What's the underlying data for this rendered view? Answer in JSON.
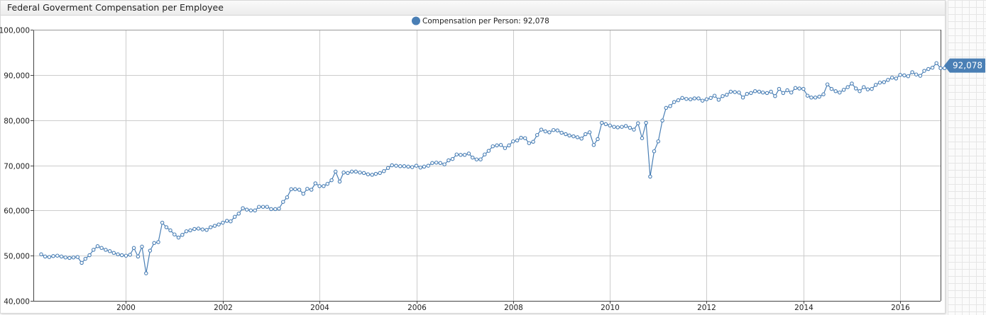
{
  "window": {
    "title": "Federal Goverment Compensation per Employee"
  },
  "colors": {
    "series": "#4a7fb5",
    "grid": "#cccccc",
    "callout": "#4a7fb5"
  },
  "chart_data": {
    "type": "line",
    "title": "Federal Goverment Compensation per Employee",
    "xlabel": "",
    "ylabel": "",
    "ylim": [
      40000,
      100000
    ],
    "xlim": [
      "1998-02-01",
      "2016-11-01"
    ],
    "grid": true,
    "legend": {
      "position": "top-center",
      "text": "Compensation per Person: 92,078"
    },
    "last_value_label": "92,078",
    "y_ticks": [
      {
        "value": 40000,
        "label": "40,000"
      },
      {
        "value": 50000,
        "label": "50,000"
      },
      {
        "value": 60000,
        "label": "60,000"
      },
      {
        "value": 70000,
        "label": "70,000"
      },
      {
        "value": 80000,
        "label": "80,000"
      },
      {
        "value": 90000,
        "label": "90,000"
      },
      {
        "value": 100000,
        "label": "100,000"
      }
    ],
    "x_ticks": [
      {
        "date": "2000-01-01",
        "label": "2000"
      },
      {
        "date": "2002-01-01",
        "label": "2002"
      },
      {
        "date": "2004-01-01",
        "label": "2004"
      },
      {
        "date": "2006-01-01",
        "label": "2006"
      },
      {
        "date": "2008-01-01",
        "label": "2008"
      },
      {
        "date": "2010-01-01",
        "label": "2010"
      },
      {
        "date": "2012-01-01",
        "label": "2012"
      },
      {
        "date": "2014-01-01",
        "label": "2014"
      },
      {
        "date": "2016-01-01",
        "label": "2016"
      }
    ],
    "series": [
      {
        "name": "Compensation per Person",
        "points": [
          [
            "1998-04",
            50300
          ],
          [
            "1998-05",
            49800
          ],
          [
            "1998-06",
            49700
          ],
          [
            "1998-07",
            49900
          ],
          [
            "1998-08",
            50000
          ],
          [
            "1998-09",
            49800
          ],
          [
            "1998-10",
            49600
          ],
          [
            "1998-11",
            49500
          ],
          [
            "1998-12",
            49600
          ],
          [
            "1999-01",
            49700
          ],
          [
            "1999-02",
            48400
          ],
          [
            "1999-03",
            49300
          ],
          [
            "1999-04",
            50100
          ],
          [
            "1999-05",
            51300
          ],
          [
            "1999-06",
            52100
          ],
          [
            "1999-07",
            51700
          ],
          [
            "1999-08",
            51300
          ],
          [
            "1999-09",
            51000
          ],
          [
            "1999-10",
            50600
          ],
          [
            "1999-11",
            50300
          ],
          [
            "1999-12",
            50100
          ],
          [
            "2000-01",
            50000
          ],
          [
            "2000-02",
            50200
          ],
          [
            "2000-03",
            51700
          ],
          [
            "2000-04",
            49800
          ],
          [
            "2000-05",
            52000
          ],
          [
            "2000-06",
            46100
          ],
          [
            "2000-07",
            51100
          ],
          [
            "2000-08",
            52800
          ],
          [
            "2000-09",
            53000
          ],
          [
            "2000-10",
            57300
          ],
          [
            "2000-11",
            56300
          ],
          [
            "2000-12",
            55600
          ],
          [
            "2001-01",
            54700
          ],
          [
            "2001-02",
            54000
          ],
          [
            "2001-03",
            54600
          ],
          [
            "2001-04",
            55400
          ],
          [
            "2001-05",
            55600
          ],
          [
            "2001-06",
            55900
          ],
          [
            "2001-07",
            56000
          ],
          [
            "2001-08",
            55800
          ],
          [
            "2001-09",
            55700
          ],
          [
            "2001-10",
            56300
          ],
          [
            "2001-11",
            56600
          ],
          [
            "2001-12",
            56900
          ],
          [
            "2002-01",
            57300
          ],
          [
            "2002-02",
            57700
          ],
          [
            "2002-03",
            57600
          ],
          [
            "2002-04",
            58600
          ],
          [
            "2002-05",
            59300
          ],
          [
            "2002-06",
            60500
          ],
          [
            "2002-07",
            60200
          ],
          [
            "2002-08",
            60000
          ],
          [
            "2002-09",
            60000
          ],
          [
            "2002-10",
            60800
          ],
          [
            "2002-11",
            60800
          ],
          [
            "2002-12",
            60800
          ],
          [
            "2003-01",
            60300
          ],
          [
            "2003-02",
            60300
          ],
          [
            "2003-03",
            60400
          ],
          [
            "2003-04",
            61900
          ],
          [
            "2003-05",
            62900
          ],
          [
            "2003-06",
            64700
          ],
          [
            "2003-07",
            64700
          ],
          [
            "2003-08",
            64600
          ],
          [
            "2003-09",
            63700
          ],
          [
            "2003-10",
            64800
          ],
          [
            "2003-11",
            64600
          ],
          [
            "2003-12",
            66000
          ],
          [
            "2004-01",
            65400
          ],
          [
            "2004-02",
            65400
          ],
          [
            "2004-03",
            65900
          ],
          [
            "2004-04",
            66700
          ],
          [
            "2004-05",
            68600
          ],
          [
            "2004-06",
            66400
          ],
          [
            "2004-07",
            68400
          ],
          [
            "2004-08",
            68300
          ],
          [
            "2004-09",
            68600
          ],
          [
            "2004-10",
            68600
          ],
          [
            "2004-11",
            68400
          ],
          [
            "2004-12",
            68300
          ],
          [
            "2005-01",
            68000
          ],
          [
            "2005-02",
            67900
          ],
          [
            "2005-03",
            68100
          ],
          [
            "2005-04",
            68300
          ],
          [
            "2005-05",
            68700
          ],
          [
            "2005-06",
            69400
          ],
          [
            "2005-07",
            70000
          ],
          [
            "2005-08",
            69900
          ],
          [
            "2005-09",
            69800
          ],
          [
            "2005-10",
            69800
          ],
          [
            "2005-11",
            69700
          ],
          [
            "2005-12",
            69600
          ],
          [
            "2006-01",
            69900
          ],
          [
            "2006-02",
            69500
          ],
          [
            "2006-03",
            69700
          ],
          [
            "2006-04",
            69900
          ],
          [
            "2006-05",
            70500
          ],
          [
            "2006-06",
            70600
          ],
          [
            "2006-07",
            70500
          ],
          [
            "2006-08",
            70200
          ],
          [
            "2006-09",
            71100
          ],
          [
            "2006-10",
            71400
          ],
          [
            "2006-11",
            72400
          ],
          [
            "2006-12",
            72300
          ],
          [
            "2007-01",
            72300
          ],
          [
            "2007-02",
            72600
          ],
          [
            "2007-03",
            71700
          ],
          [
            "2007-04",
            71300
          ],
          [
            "2007-05",
            71300
          ],
          [
            "2007-06",
            72400
          ],
          [
            "2007-07",
            73200
          ],
          [
            "2007-08",
            74200
          ],
          [
            "2007-09",
            74400
          ],
          [
            "2007-10",
            74500
          ],
          [
            "2007-11",
            73800
          ],
          [
            "2007-12",
            74400
          ],
          [
            "2008-01",
            75300
          ],
          [
            "2008-02",
            75500
          ],
          [
            "2008-03",
            76100
          ],
          [
            "2008-04",
            76000
          ],
          [
            "2008-05",
            74900
          ],
          [
            "2008-06",
            75200
          ],
          [
            "2008-07",
            76700
          ],
          [
            "2008-08",
            77900
          ],
          [
            "2008-09",
            77500
          ],
          [
            "2008-10",
            77300
          ],
          [
            "2008-11",
            77800
          ],
          [
            "2008-12",
            77700
          ],
          [
            "2009-01",
            77200
          ],
          [
            "2009-02",
            76900
          ],
          [
            "2009-03",
            76600
          ],
          [
            "2009-04",
            76400
          ],
          [
            "2009-05",
            76200
          ],
          [
            "2009-06",
            75900
          ],
          [
            "2009-07",
            76900
          ],
          [
            "2009-08",
            77300
          ],
          [
            "2009-09",
            74500
          ],
          [
            "2009-10",
            75800
          ],
          [
            "2009-11",
            79400
          ],
          [
            "2009-12",
            79100
          ],
          [
            "2010-01",
            78800
          ],
          [
            "2010-02",
            78500
          ],
          [
            "2010-03",
            78400
          ],
          [
            "2010-04",
            78500
          ],
          [
            "2010-05",
            78700
          ],
          [
            "2010-06",
            78300
          ],
          [
            "2010-07",
            77900
          ],
          [
            "2010-08",
            79300
          ],
          [
            "2010-09",
            76000
          ],
          [
            "2010-10",
            79400
          ],
          [
            "2010-11",
            67500
          ],
          [
            "2010-12",
            73100
          ],
          [
            "2011-01",
            75300
          ],
          [
            "2011-02",
            79900
          ],
          [
            "2011-03",
            82700
          ],
          [
            "2011-04",
            83100
          ],
          [
            "2011-05",
            84000
          ],
          [
            "2011-06",
            84400
          ],
          [
            "2011-07",
            84900
          ],
          [
            "2011-08",
            84700
          ],
          [
            "2011-09",
            84600
          ],
          [
            "2011-10",
            84800
          ],
          [
            "2011-11",
            84800
          ],
          [
            "2011-12",
            84300
          ],
          [
            "2012-01",
            84600
          ],
          [
            "2012-02",
            84900
          ],
          [
            "2012-03",
            85400
          ],
          [
            "2012-04",
            84500
          ],
          [
            "2012-05",
            85300
          ],
          [
            "2012-06",
            85600
          ],
          [
            "2012-07",
            86300
          ],
          [
            "2012-08",
            86200
          ],
          [
            "2012-09",
            86100
          ],
          [
            "2012-10",
            85000
          ],
          [
            "2012-11",
            85800
          ],
          [
            "2012-12",
            86000
          ],
          [
            "2013-01",
            86400
          ],
          [
            "2013-02",
            86300
          ],
          [
            "2013-03",
            86100
          ],
          [
            "2013-04",
            86000
          ],
          [
            "2013-05",
            86300
          ],
          [
            "2013-06",
            85300
          ],
          [
            "2013-07",
            86900
          ],
          [
            "2013-08",
            86000
          ],
          [
            "2013-09",
            86600
          ],
          [
            "2013-10",
            86100
          ],
          [
            "2013-11",
            87100
          ],
          [
            "2013-12",
            87000
          ],
          [
            "2014-01",
            86900
          ],
          [
            "2014-02",
            85400
          ],
          [
            "2014-03",
            85000
          ],
          [
            "2014-04",
            85000
          ],
          [
            "2014-05",
            85200
          ],
          [
            "2014-06",
            85700
          ],
          [
            "2014-07",
            87900
          ],
          [
            "2014-08",
            86900
          ],
          [
            "2014-09",
            86400
          ],
          [
            "2014-10",
            86100
          ],
          [
            "2014-11",
            86700
          ],
          [
            "2014-12",
            87300
          ],
          [
            "2015-01",
            88100
          ],
          [
            "2015-02",
            87000
          ],
          [
            "2015-03",
            86400
          ],
          [
            "2015-04",
            87300
          ],
          [
            "2015-05",
            86800
          ],
          [
            "2015-06",
            86900
          ],
          [
            "2015-07",
            87800
          ],
          [
            "2015-08",
            88300
          ],
          [
            "2015-09",
            88400
          ],
          [
            "2015-10",
            88900
          ],
          [
            "2015-11",
            89400
          ],
          [
            "2015-12",
            89200
          ],
          [
            "2016-01",
            90000
          ],
          [
            "2016-02",
            89900
          ],
          [
            "2016-03",
            89700
          ],
          [
            "2016-04",
            90600
          ],
          [
            "2016-05",
            90100
          ],
          [
            "2016-06",
            89800
          ],
          [
            "2016-07",
            90900
          ],
          [
            "2016-08",
            91300
          ],
          [
            "2016-09",
            91600
          ],
          [
            "2016-10",
            92600
          ],
          [
            "2016-11",
            91500
          ],
          [
            "2016-12",
            91500
          ],
          [
            "2017-01",
            91600
          ],
          [
            "2017-02",
            91500
          ],
          [
            "2017-03",
            92078
          ]
        ]
      }
    ]
  }
}
